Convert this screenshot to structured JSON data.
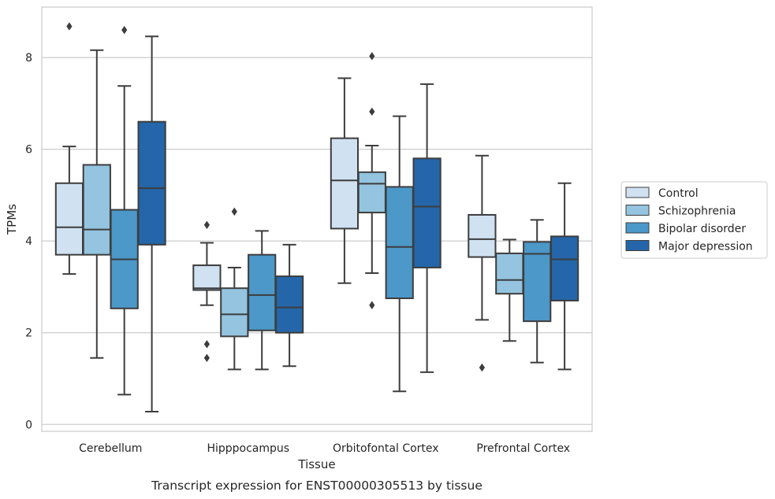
{
  "chart_data": {
    "type": "box",
    "caption": "Transcript expression for ENST00000305513 by tissue",
    "xlabel": "Tissue",
    "ylabel": "TPMs",
    "ylim": [
      -0.15,
      9.1
    ],
    "yticks": [
      0,
      2,
      4,
      6,
      8
    ],
    "grid": "horizontal",
    "legend_position": "right",
    "categories": [
      "Cerebellum",
      "Hipppocampus",
      "Orbitofontal Cortex",
      "Prefrontal Cortex"
    ],
    "series": [
      {
        "name": "Control",
        "color": "#d0e1f2",
        "boxes": [
          {
            "whisker_low": 3.28,
            "q1": 3.7,
            "median": 4.3,
            "q3": 5.26,
            "whisker_high": 6.06,
            "outliers": [
              8.68
            ]
          },
          {
            "whisker_low": 2.6,
            "q1": 2.93,
            "median": 2.97,
            "q3": 3.47,
            "whisker_high": 3.96,
            "outliers": [
              4.35,
              1.75,
              1.45
            ]
          },
          {
            "whisker_low": 3.08,
            "q1": 4.27,
            "median": 5.32,
            "q3": 6.24,
            "whisker_high": 7.55,
            "outliers": []
          },
          {
            "whisker_low": 2.28,
            "q1": 3.65,
            "median": 4.04,
            "q3": 4.57,
            "whisker_high": 5.86,
            "outliers": [
              1.24
            ]
          }
        ]
      },
      {
        "name": "Schizophrenia",
        "color": "#94c4df",
        "boxes": [
          {
            "whisker_low": 1.45,
            "q1": 3.7,
            "median": 4.25,
            "q3": 5.66,
            "whisker_high": 8.16,
            "outliers": []
          },
          {
            "whisker_low": 1.2,
            "q1": 1.92,
            "median": 2.4,
            "q3": 2.97,
            "whisker_high": 3.42,
            "outliers": [
              4.64
            ]
          },
          {
            "whisker_low": 3.3,
            "q1": 4.62,
            "median": 5.25,
            "q3": 5.5,
            "whisker_high": 6.08,
            "outliers": [
              8.03,
              6.82,
              2.6
            ]
          },
          {
            "whisker_low": 1.82,
            "q1": 2.85,
            "median": 3.15,
            "q3": 3.73,
            "whisker_high": 4.03,
            "outliers": []
          }
        ]
      },
      {
        "name": "Bipolar disorder",
        "color": "#4b98c9",
        "boxes": [
          {
            "whisker_low": 0.65,
            "q1": 2.53,
            "median": 3.6,
            "q3": 4.68,
            "whisker_high": 7.38,
            "outliers": [
              8.6
            ]
          },
          {
            "whisker_low": 1.2,
            "q1": 2.05,
            "median": 2.82,
            "q3": 3.7,
            "whisker_high": 4.22,
            "outliers": []
          },
          {
            "whisker_low": 0.72,
            "q1": 2.75,
            "median": 3.87,
            "q3": 5.18,
            "whisker_high": 6.72,
            "outliers": []
          },
          {
            "whisker_low": 1.35,
            "q1": 2.25,
            "median": 3.72,
            "q3": 3.98,
            "whisker_high": 4.46,
            "outliers": []
          }
        ]
      },
      {
        "name": "Major depression",
        "color": "#2466a9",
        "boxes": [
          {
            "whisker_low": 0.28,
            "q1": 3.92,
            "median": 5.15,
            "q3": 6.6,
            "whisker_high": 8.46,
            "outliers": []
          },
          {
            "whisker_low": 1.27,
            "q1": 2.0,
            "median": 2.55,
            "q3": 3.23,
            "whisker_high": 3.92,
            "outliers": []
          },
          {
            "whisker_low": 1.14,
            "q1": 3.42,
            "median": 4.75,
            "q3": 5.8,
            "whisker_high": 7.42,
            "outliers": []
          },
          {
            "whisker_low": 1.2,
            "q1": 2.7,
            "median": 3.6,
            "q3": 4.1,
            "whisker_high": 5.26,
            "outliers": []
          }
        ]
      }
    ]
  }
}
